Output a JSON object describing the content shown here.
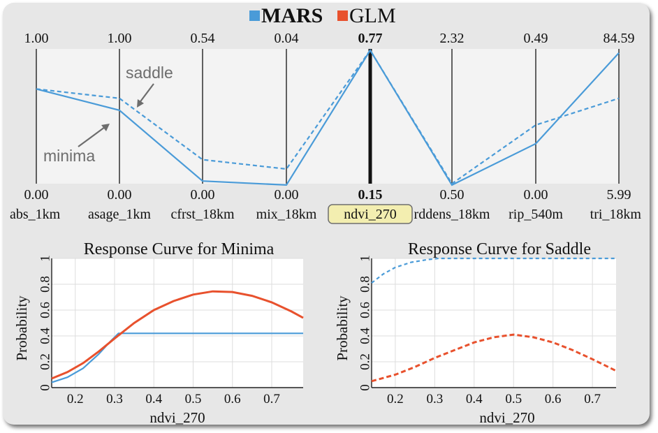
{
  "legend": [
    {
      "label": "MARS",
      "color": "#4a9bd8"
    },
    {
      "label": "GLM",
      "color": "#e8512d"
    }
  ],
  "parallel_coordinates": {
    "axes": [
      {
        "name": "abs_1km",
        "top": "1.00",
        "bottom": "0.00"
      },
      {
        "name": "asage_1km",
        "top": "1.00",
        "bottom": "0.00"
      },
      {
        "name": "cfrst_18km",
        "top": "0.54",
        "bottom": "0.00"
      },
      {
        "name": "mix_18km",
        "top": "0.04",
        "bottom": "0.00"
      },
      {
        "name": "ndvi_270",
        "top": "0.77",
        "bottom": "0.15",
        "selected": true
      },
      {
        "name": "rddens_18km",
        "top": "2.32",
        "bottom": "0.50"
      },
      {
        "name": "rip_540m",
        "top": "0.49",
        "bottom": "0.00"
      },
      {
        "name": "tri_18km",
        "top": "84.59",
        "bottom": "5.99"
      }
    ],
    "annotations": {
      "saddle": "saddle",
      "minima": "minima"
    }
  },
  "chart_data": [
    {
      "type": "line",
      "title": "",
      "series": [
        {
          "name": "minima",
          "style": "solid",
          "values": [
            0.71,
            0.55,
            0.02,
            -0.01,
            1.0,
            -0.01,
            0.3,
            0.98
          ]
        },
        {
          "name": "saddle",
          "style": "dashed",
          "values": [
            0.71,
            0.64,
            0.18,
            0.11,
            1.0,
            0.0,
            0.44,
            0.64
          ]
        }
      ],
      "xlabel": "",
      "ylabel": ""
    },
    {
      "type": "line",
      "title": "Response Curve  for Minima",
      "xlabel": "ndvi_270",
      "ylabel": "Probability",
      "xlim": [
        0.14,
        0.78
      ],
      "ylim": [
        0,
        1
      ],
      "xticks": [
        "0.2",
        "0.3",
        "0.4",
        "0.5",
        "0.6",
        "0.7"
      ],
      "yticks": [
        "0",
        "0.2",
        "0.4",
        "0.6",
        "0.8",
        "1"
      ],
      "grid": true,
      "series": [
        {
          "name": "MARS",
          "color": "#4a9bd8",
          "style": "solid",
          "x": [
            0.14,
            0.18,
            0.22,
            0.26,
            0.29,
            0.31,
            0.78
          ],
          "y": [
            0.04,
            0.08,
            0.15,
            0.26,
            0.36,
            0.42,
            0.42
          ]
        },
        {
          "name": "GLM",
          "color": "#e8512d",
          "style": "solid",
          "x": [
            0.14,
            0.18,
            0.22,
            0.26,
            0.3,
            0.35,
            0.4,
            0.45,
            0.5,
            0.55,
            0.6,
            0.65,
            0.7,
            0.75,
            0.78
          ],
          "y": [
            0.07,
            0.12,
            0.19,
            0.28,
            0.38,
            0.5,
            0.6,
            0.67,
            0.72,
            0.745,
            0.74,
            0.71,
            0.66,
            0.59,
            0.54
          ]
        }
      ]
    },
    {
      "type": "line",
      "title": "Response Curve  for Saddle",
      "xlabel": "ndvi_270",
      "ylabel": "Probability",
      "xlim": [
        0.14,
        0.76
      ],
      "ylim": [
        0,
        1
      ],
      "xticks": [
        "0.2",
        "0.3",
        "0.4",
        "0.5",
        "0.6",
        "0.7"
      ],
      "yticks": [
        "0",
        "0.2",
        "0.4",
        "0.6",
        "0.8",
        "1"
      ],
      "grid": true,
      "series": [
        {
          "name": "MARS",
          "color": "#4a9bd8",
          "style": "dashed",
          "x": [
            0.14,
            0.17,
            0.2,
            0.24,
            0.28,
            0.31,
            0.76
          ],
          "y": [
            0.81,
            0.88,
            0.93,
            0.97,
            0.99,
            1.0,
            1.0
          ]
        },
        {
          "name": "GLM",
          "color": "#e8512d",
          "style": "dashed",
          "x": [
            0.14,
            0.2,
            0.25,
            0.3,
            0.35,
            0.4,
            0.45,
            0.5,
            0.55,
            0.6,
            0.65,
            0.7,
            0.76
          ],
          "y": [
            0.05,
            0.1,
            0.16,
            0.23,
            0.29,
            0.35,
            0.39,
            0.41,
            0.39,
            0.35,
            0.29,
            0.22,
            0.13
          ]
        }
      ]
    }
  ]
}
